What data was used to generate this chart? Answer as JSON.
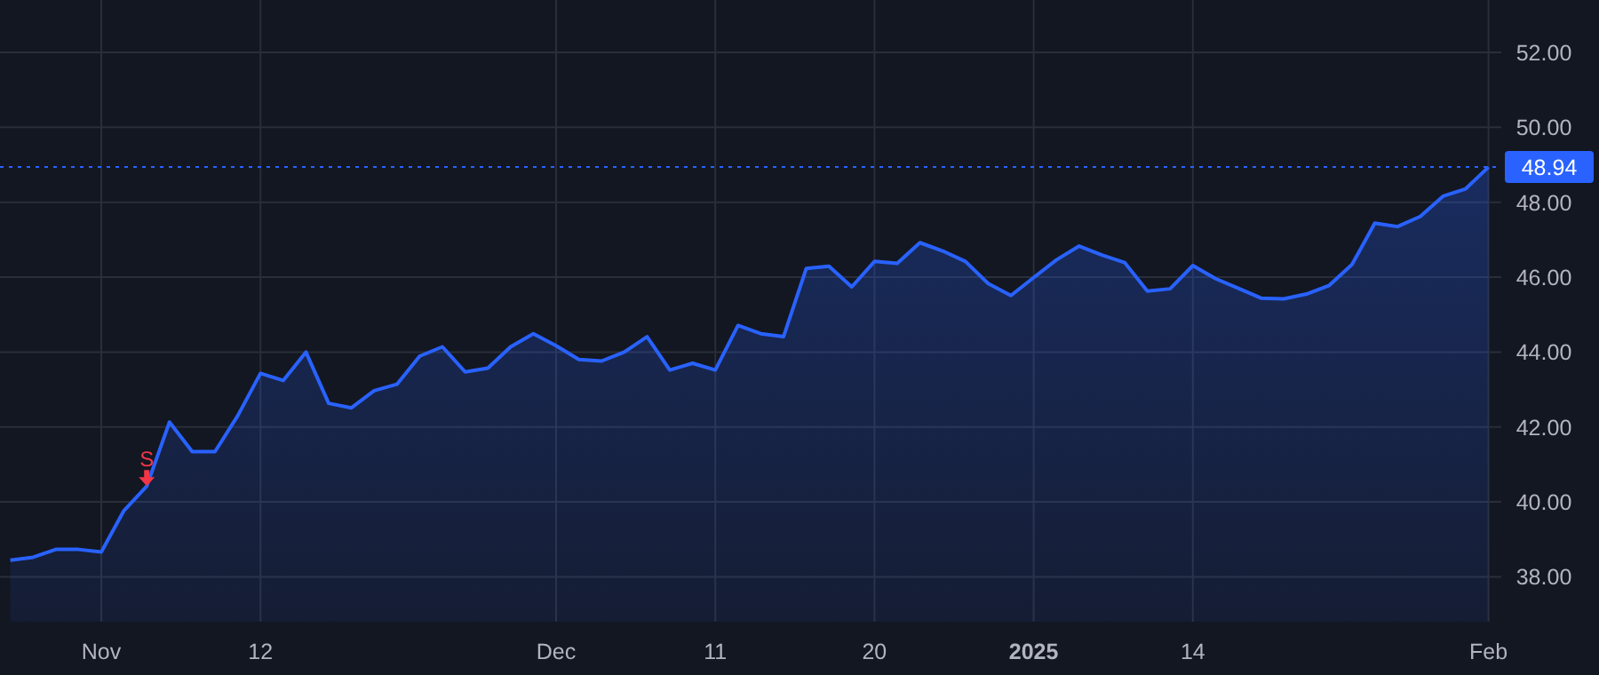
{
  "chart_data": {
    "type": "area",
    "categories": [
      null,
      null,
      null,
      null,
      "Nov",
      null,
      null,
      null,
      null,
      null,
      null,
      "12",
      null,
      null,
      null,
      null,
      null,
      null,
      null,
      null,
      null,
      null,
      null,
      null,
      "Dec",
      null,
      null,
      null,
      null,
      null,
      null,
      "11",
      null,
      null,
      null,
      null,
      null,
      null,
      "20",
      null,
      null,
      null,
      null,
      null,
      null,
      "2025",
      null,
      null,
      null,
      null,
      null,
      null,
      "14",
      null,
      null,
      null,
      null,
      null,
      null,
      null,
      null,
      null,
      null,
      null,
      null,
      "Feb"
    ],
    "series": [
      {
        "color": "#2962ff",
        "values": [
          38.44,
          38.52,
          38.73,
          38.73,
          38.66,
          39.77,
          40.42,
          42.13,
          41.34,
          41.34,
          42.3,
          43.43,
          43.24,
          44.0,
          42.63,
          42.51,
          42.97,
          43.14,
          43.89,
          44.14,
          43.47,
          43.57,
          44.14,
          44.49,
          44.17,
          43.8,
          43.76,
          44.0,
          44.41,
          43.52,
          43.7,
          43.52,
          44.71,
          44.49,
          44.41,
          46.23,
          46.29,
          45.74,
          46.42,
          46.37,
          46.92,
          46.7,
          46.42,
          45.83,
          45.51,
          45.99,
          46.46,
          46.83,
          46.59,
          46.39,
          45.63,
          45.69,
          46.31,
          45.96,
          45.7,
          45.44,
          45.42,
          45.55,
          45.78,
          46.34,
          47.44,
          47.35,
          47.62,
          48.16,
          48.36,
          48.94
        ]
      }
    ],
    "ylim": [
      36.8,
      53.4
    ],
    "yticks": [
      {
        "value": 38,
        "label": "38.00"
      },
      {
        "value": 40,
        "label": "40.00"
      },
      {
        "value": 42,
        "label": "42.00"
      },
      {
        "value": 44,
        "label": "44.00"
      },
      {
        "value": 46,
        "label": "46.00"
      },
      {
        "value": 48,
        "label": "48.00"
      },
      {
        "value": 50,
        "label": "50.00"
      },
      {
        "value": 52,
        "label": "52.00"
      }
    ],
    "grid": true,
    "ref_lines": [
      {
        "axis": "y",
        "value": 48.94,
        "label": "48.94",
        "color": "#2962ff",
        "line_style": "dotted"
      }
    ],
    "annotations": [
      {
        "text": "S",
        "y": 40.42
      }
    ]
  }
}
